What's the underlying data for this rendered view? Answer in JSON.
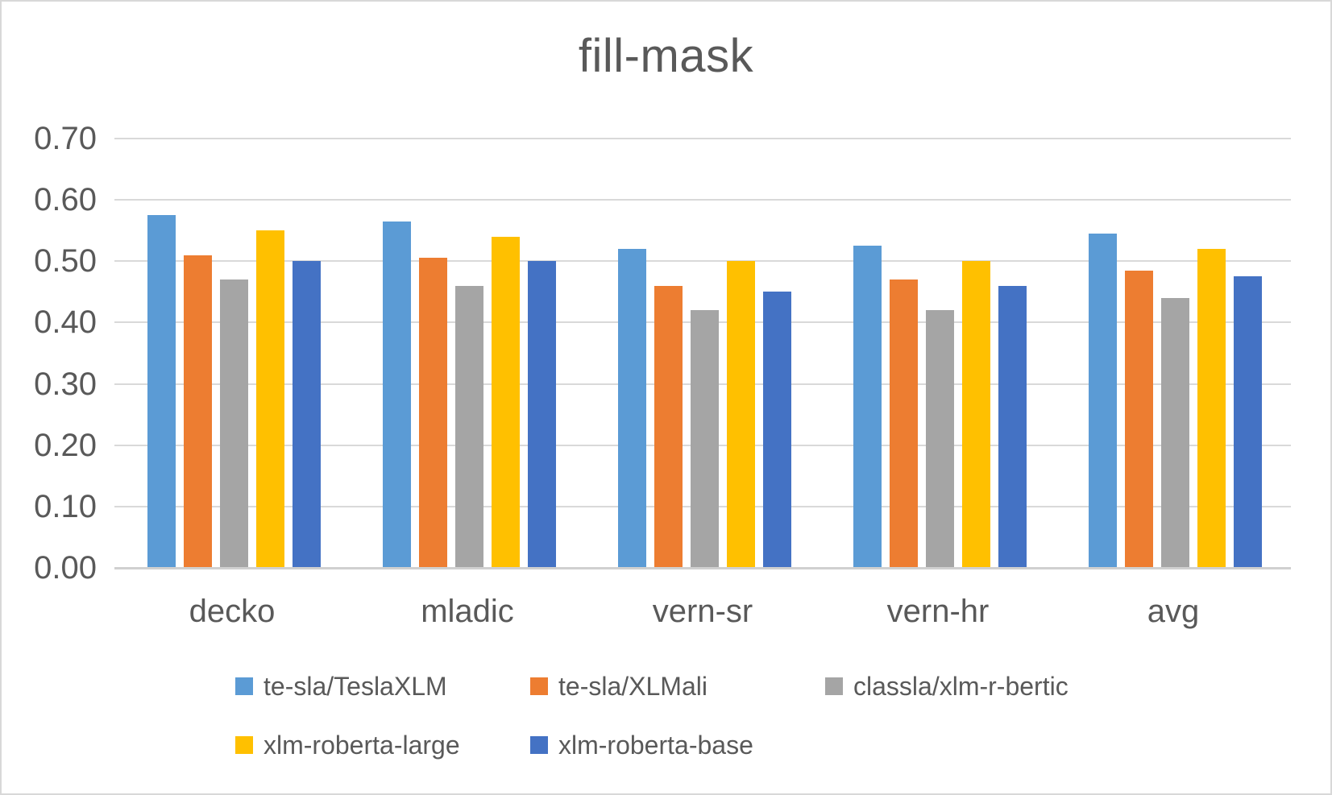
{
  "chart_data": {
    "type": "bar",
    "title": "fill-mask",
    "categories": [
      "decko",
      "mladic",
      "vern-sr",
      "vern-hr",
      "avg"
    ],
    "series": [
      {
        "name": "te-sla/TeslaXLM",
        "color": "#5B9BD5",
        "values": [
          0.575,
          0.565,
          0.52,
          0.525,
          0.545
        ]
      },
      {
        "name": "te-sla/XLMali",
        "color": "#ED7D31",
        "values": [
          0.51,
          0.505,
          0.46,
          0.47,
          0.485
        ]
      },
      {
        "name": "classla/xlm-r-bertic",
        "color": "#A5A5A5",
        "values": [
          0.47,
          0.46,
          0.42,
          0.42,
          0.44
        ]
      },
      {
        "name": "xlm-roberta-large",
        "color": "#FFC000",
        "values": [
          0.55,
          0.54,
          0.5,
          0.5,
          0.52
        ]
      },
      {
        "name": "xlm-roberta-base",
        "color": "#4472C4",
        "values": [
          0.5,
          0.5,
          0.45,
          0.46,
          0.475
        ]
      }
    ],
    "xlabel": "",
    "ylabel": "",
    "y_axis": {
      "min": 0.0,
      "max": 0.7,
      "step": 0.1,
      "tick_labels": [
        "0.00",
        "0.10",
        "0.20",
        "0.30",
        "0.40",
        "0.50",
        "0.60",
        "0.70"
      ]
    },
    "grid": true,
    "legend_position": "bottom",
    "legend_rows": [
      [
        0,
        1,
        2
      ],
      [
        3,
        4
      ]
    ],
    "text_color": "#595959",
    "gridline_color": "#D9D9D9"
  }
}
